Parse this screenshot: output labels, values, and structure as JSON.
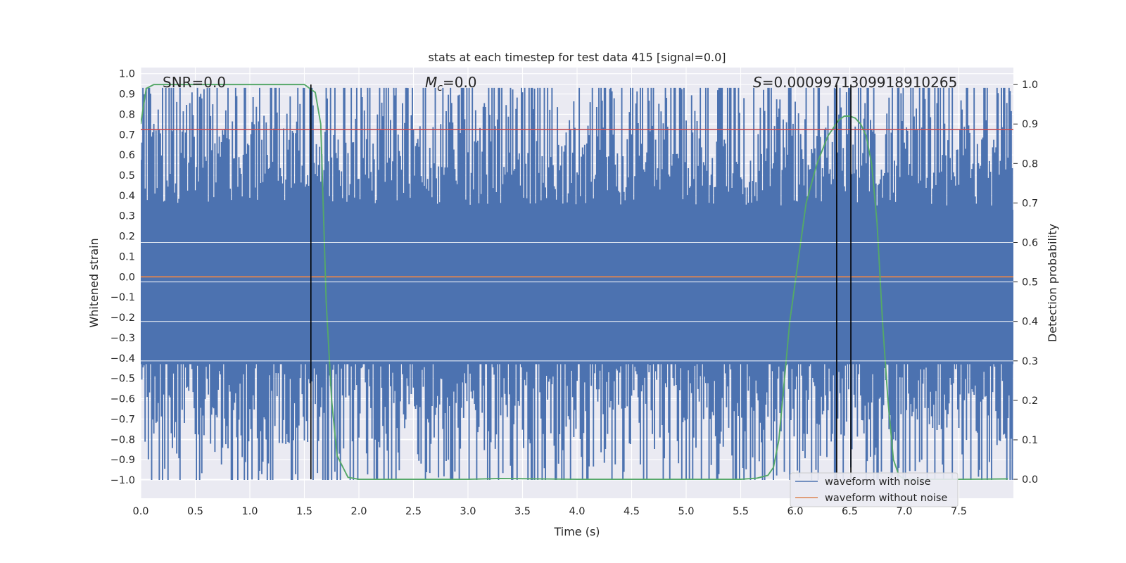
{
  "chart_data": {
    "type": "line",
    "title": "stats at each timestep for test data 415 [signal=0.0]",
    "xlabel": "Time (s)",
    "ylabel_left": "Whitened strain",
    "ylabel_right": "Detection probability",
    "xlim": [
      0.0,
      8.0
    ],
    "ylim_left": [
      -1.09,
      1.03
    ],
    "ylim_right": [
      -0.048,
      1.043
    ],
    "x_ticks": [
      "0.0",
      "0.5",
      "1.0",
      "1.5",
      "2.0",
      "2.5",
      "3.0",
      "3.5",
      "4.0",
      "4.5",
      "5.0",
      "5.5",
      "6.0",
      "6.5",
      "7.0",
      "7.5"
    ],
    "y_left_ticks": [
      "1.0",
      "0.9",
      "0.8",
      "0.7",
      "0.6",
      "0.5",
      "0.4",
      "0.3",
      "0.2",
      "0.1",
      "0.0",
      "−0.1",
      "−0.2",
      "−0.3",
      "−0.4",
      "−0.5",
      "−0.6",
      "−0.7",
      "−0.8",
      "−0.9",
      "−1.0"
    ],
    "y_right_ticks": [
      "1.0",
      "0.9",
      "0.8",
      "0.7",
      "0.6",
      "0.5",
      "0.4",
      "0.3",
      "0.2",
      "0.1",
      "0.0"
    ],
    "annotations": {
      "snr": "SNR=0.0",
      "mc_symbol": "M",
      "mc_sub": "c",
      "mc_value": "=0.0",
      "s_symbol": "S",
      "s_value": "=0.0009971309918910265"
    },
    "legend": {
      "position": "lower-right",
      "entries": [
        {
          "label": "waveform with noise",
          "color": "#4c72b0"
        },
        {
          "label": "waveform without noise",
          "color": "#dd8452"
        }
      ]
    },
    "series": [
      {
        "name": "waveform with noise",
        "axis": "left",
        "color": "#4c72b0",
        "kind": "noise",
        "samples": 800,
        "amplitude_std": 0.32,
        "clip": [
          -1.0,
          0.93
        ]
      },
      {
        "name": "waveform without noise",
        "axis": "left",
        "color": "#dd8452",
        "x": [
          0.0,
          8.0
        ],
        "y": [
          0.0,
          0.0
        ]
      },
      {
        "name": "detection probability",
        "axis": "right",
        "color": "#55a868",
        "x": [
          0.0,
          0.05,
          0.12,
          0.25,
          0.5,
          1.0,
          1.2,
          1.4,
          1.5,
          1.55,
          1.6,
          1.65,
          1.7,
          1.75,
          1.8,
          1.9,
          2.0,
          3.0,
          3.3,
          4.0,
          5.0,
          5.5,
          5.65,
          5.75,
          5.8,
          5.85,
          5.9,
          5.95,
          6.0,
          6.05,
          6.1,
          6.2,
          6.3,
          6.35,
          6.4,
          6.45,
          6.5,
          6.55,
          6.6,
          6.65,
          6.7,
          6.75,
          6.8,
          6.85,
          6.9,
          6.95,
          7.0,
          7.5,
          7.95
        ],
        "y": [
          0.9,
          0.99,
          1.0,
          1.0,
          1.0,
          1.0,
          1.0,
          1.0,
          1.0,
          0.99,
          0.98,
          0.9,
          0.45,
          0.2,
          0.06,
          0.005,
          0.0,
          0.0,
          0.002,
          0.0,
          0.0,
          0.0,
          0.003,
          0.01,
          0.03,
          0.1,
          0.25,
          0.4,
          0.5,
          0.6,
          0.7,
          0.8,
          0.87,
          0.89,
          0.91,
          0.92,
          0.92,
          0.915,
          0.9,
          0.87,
          0.8,
          0.65,
          0.4,
          0.2,
          0.05,
          0.01,
          0.0,
          0.0,
          0.001
        ]
      }
    ],
    "vertical_lines": [
      1.56,
      6.38,
      6.51
    ],
    "horizontal_lines": [
      {
        "axis": "left",
        "y": 0.725,
        "color": "#c44e52"
      }
    ]
  }
}
